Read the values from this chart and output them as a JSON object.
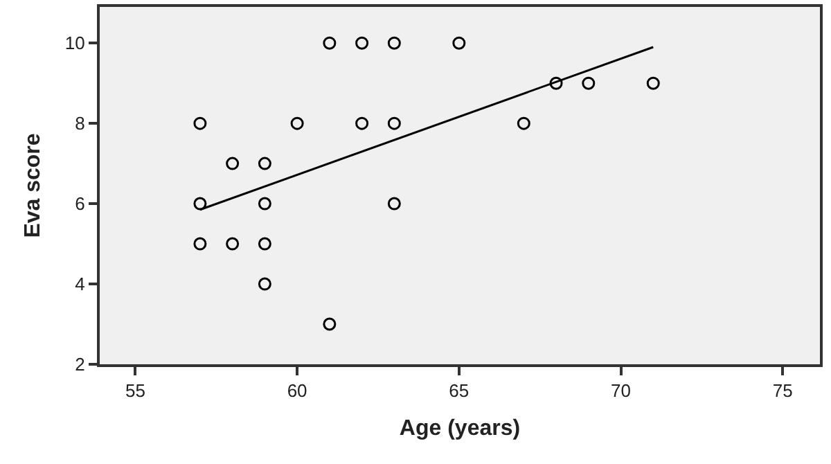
{
  "chart_data": {
    "type": "scatter",
    "xlabel": "Age (years)",
    "ylabel": "Eva score",
    "xlim": [
      53.9,
      76.15
    ],
    "xticks": [
      55,
      60,
      65,
      70,
      75
    ],
    "ylim": [
      2,
      10.9
    ],
    "yticks": [
      2,
      4,
      6,
      8,
      10
    ],
    "grid": false,
    "marker": "circle",
    "series": [
      {
        "color": "#000000",
        "x": [
          57,
          57,
          57,
          58,
          58,
          59,
          59,
          59,
          59,
          60,
          61,
          61,
          62,
          62,
          63,
          63,
          63,
          65,
          67,
          68,
          69,
          71
        ],
        "values": [
          8,
          6,
          5,
          7,
          5,
          7,
          6,
          5,
          4,
          8,
          10,
          3,
          10,
          8,
          10,
          8,
          6,
          10,
          8,
          9,
          9,
          9
        ]
      },
      {
        "type": "line",
        "color": "#000000",
        "x": [
          57,
          71
        ],
        "values": [
          5.85,
          9.9
        ],
        "line_style": "solid",
        "marker": "none"
      }
    ]
  }
}
